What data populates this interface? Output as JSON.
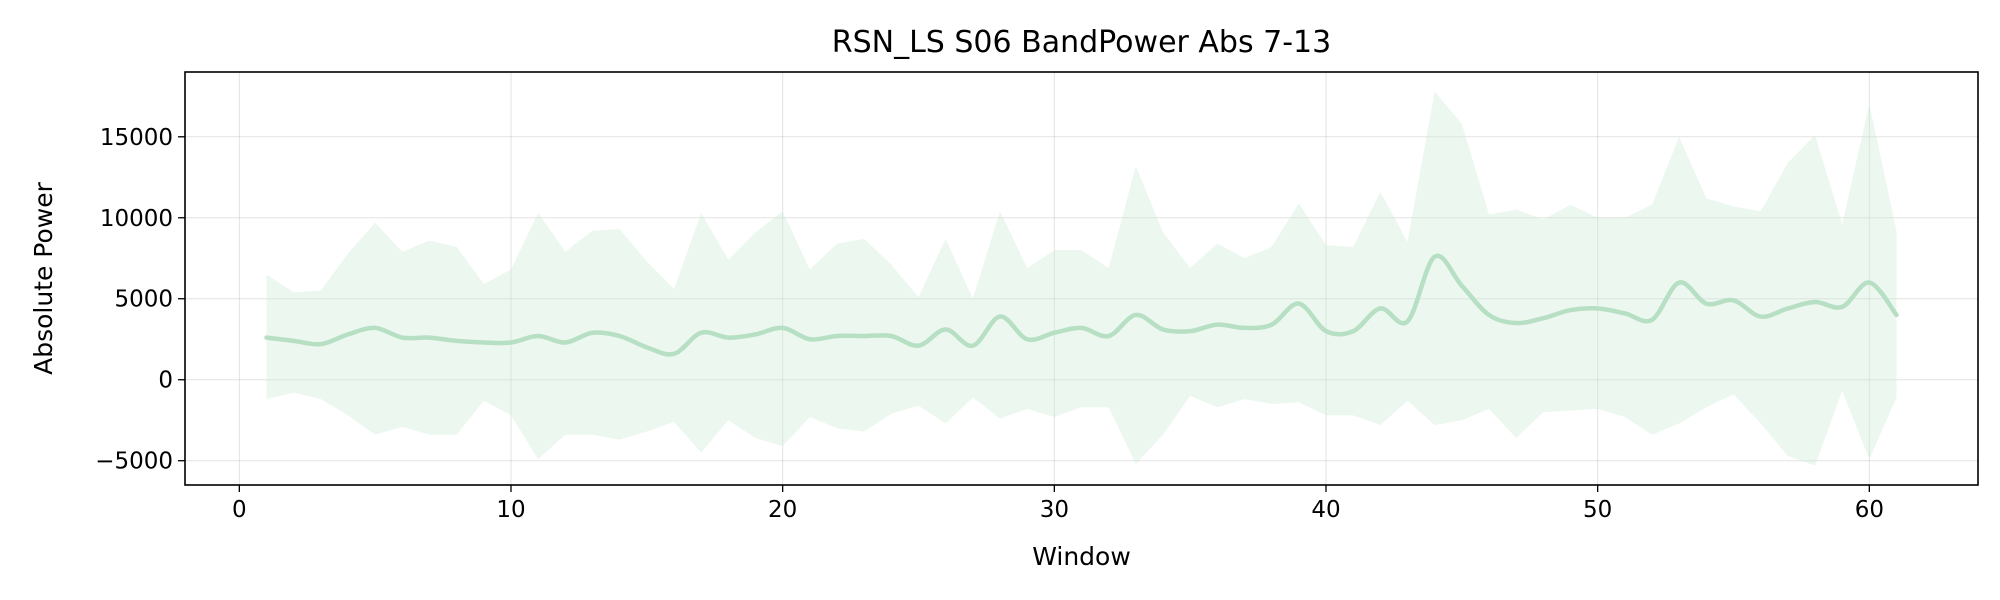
{
  "chart_data": {
    "type": "line",
    "title": "RSN_LS S06 BandPower Abs 7-13",
    "xlabel": "Window",
    "ylabel": "Absolute Power",
    "xlim": [
      -2,
      64
    ],
    "ylim": [
      -6500,
      19000
    ],
    "grid": true,
    "xticks": [
      0,
      10,
      20,
      30,
      40,
      50,
      60
    ],
    "xtick_labels": [
      "0",
      "10",
      "20",
      "30",
      "40",
      "50",
      "60"
    ],
    "yticks": [
      -5000,
      0,
      5000,
      10000,
      15000
    ],
    "ytick_labels": [
      "−5000",
      "0",
      "5000",
      "10000",
      "15000"
    ],
    "series": [
      {
        "color": "#b6dfc4",
        "band_color": "#c8e8d2",
        "x": [
          1,
          2,
          3,
          4,
          5,
          6,
          7,
          8,
          9,
          10,
          11,
          12,
          13,
          14,
          15,
          16,
          17,
          18,
          19,
          20,
          21,
          22,
          23,
          24,
          25,
          26,
          27,
          28,
          29,
          30,
          31,
          32,
          33,
          34,
          35,
          36,
          37,
          38,
          39,
          40,
          41,
          42,
          43,
          44,
          45,
          46,
          47,
          48,
          49,
          50,
          51,
          52,
          53,
          54,
          55,
          56,
          57,
          58,
          59,
          60,
          61
        ],
        "mean": [
          2600,
          2400,
          2200,
          2800,
          3200,
          2600,
          2600,
          2400,
          2300,
          2300,
          2700,
          2300,
          2900,
          2700,
          2000,
          1600,
          2900,
          2600,
          2800,
          3200,
          2500,
          2700,
          2700,
          2700,
          2100,
          3100,
          2100,
          3900,
          2500,
          2900,
          3200,
          2700,
          4000,
          3100,
          3000,
          3400,
          3200,
          3400,
          4700,
          3000,
          3000,
          4400,
          3600,
          7600,
          5800,
          4000,
          3500,
          3800,
          4300,
          4400,
          4100,
          3700,
          6000,
          4700,
          4900,
          3900,
          4400,
          4800,
          4500,
          6000,
          4000
        ],
        "upper": [
          6500,
          5400,
          5500,
          7800,
          9700,
          7900,
          8600,
          8200,
          5900,
          6800,
          10300,
          7900,
          9200,
          9300,
          7300,
          5600,
          10300,
          7400,
          9100,
          10400,
          6800,
          8400,
          8700,
          7100,
          5100,
          8700,
          5000,
          10400,
          6900,
          8000,
          8000,
          6900,
          13200,
          9100,
          6900,
          8400,
          7500,
          8200,
          10900,
          8300,
          8200,
          11600,
          8500,
          17800,
          15800,
          10200,
          10500,
          9900,
          10800,
          10000,
          10000,
          10800,
          15000,
          11200,
          10700,
          10400,
          13400,
          15100,
          9600,
          17000,
          9200
        ],
        "lower": [
          -1200,
          -800,
          -1200,
          -2200,
          -3400,
          -2900,
          -3400,
          -3400,
          -1300,
          -2200,
          -4900,
          -3400,
          -3400,
          -3700,
          -3200,
          -2600,
          -4500,
          -2500,
          -3600,
          -4100,
          -2300,
          -3000,
          -3200,
          -2100,
          -1600,
          -2700,
          -1100,
          -2400,
          -1800,
          -2300,
          -1700,
          -1700,
          -5200,
          -3400,
          -1000,
          -1700,
          -1200,
          -1500,
          -1400,
          -2200,
          -2200,
          -2800,
          -1300,
          -2800,
          -2500,
          -1800,
          -3600,
          -2000,
          -1900,
          -1800,
          -2300,
          -3400,
          -2700,
          -1700,
          -900,
          -2700,
          -4700,
          -5300,
          -700,
          -4900,
          -1100
        ]
      }
    ]
  }
}
